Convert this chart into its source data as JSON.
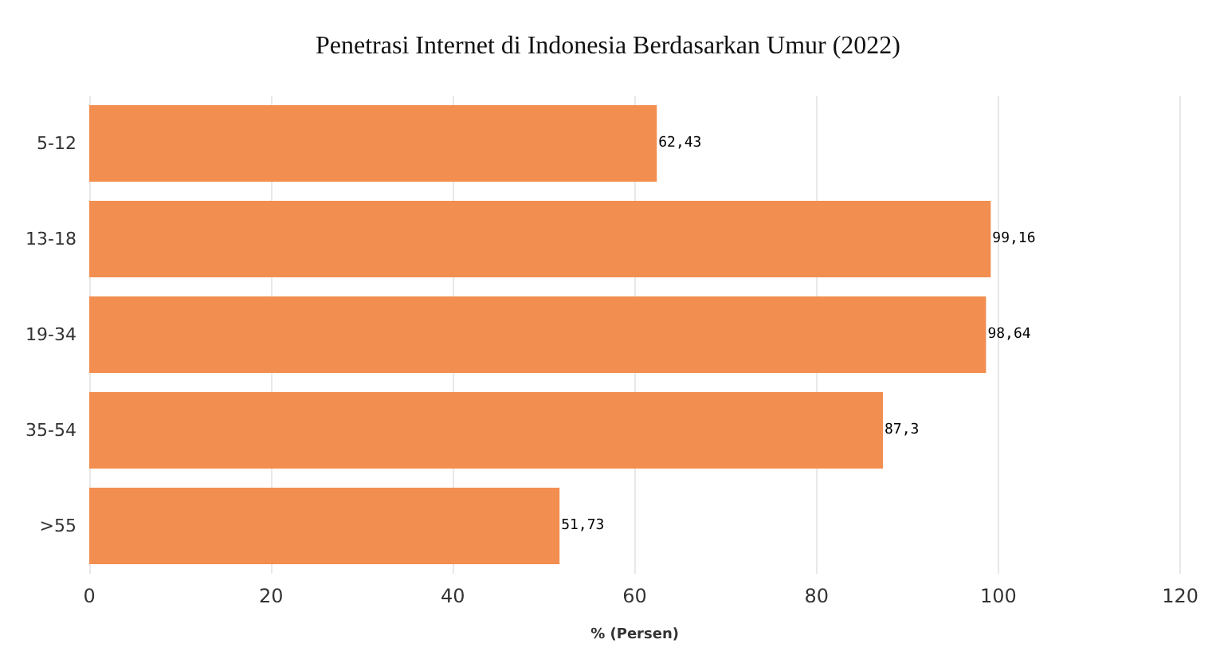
{
  "chart_data": {
    "type": "bar",
    "orientation": "horizontal",
    "title": "Penetrasi Internet di Indonesia Berdasarkan Umur (2022)",
    "xlabel": "% (Persen)",
    "categories": [
      "5-12",
      "13-18",
      "19-34",
      "35-54",
      ">55"
    ],
    "values": [
      62.43,
      99.16,
      98.64,
      87.3,
      51.73
    ],
    "value_labels": [
      "62,43",
      "99,16",
      "98,64",
      "87,3",
      "51,73"
    ],
    "color": "#f28e50",
    "xlim": [
      0,
      120
    ],
    "xticks": [
      0,
      20,
      40,
      60,
      80,
      100,
      120
    ],
    "grid": "x"
  }
}
